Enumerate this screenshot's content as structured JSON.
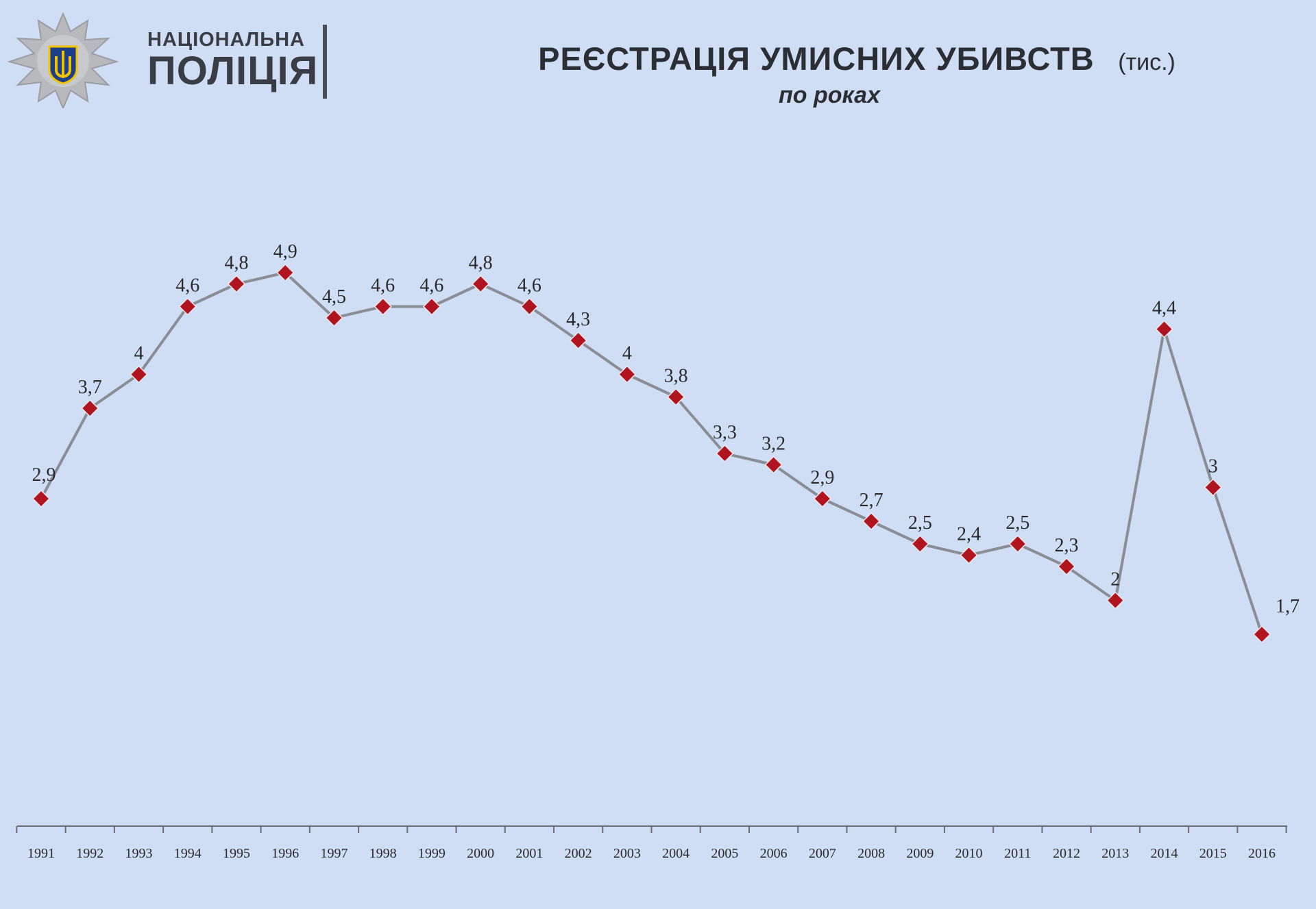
{
  "logo": {
    "line1": "НАЦІОНАЛЬНА",
    "line2": "ПОЛІЦІЯ",
    "emblem": "trident-star-icon"
  },
  "colors": {
    "background": "#cfddf5",
    "line": "#8a8d94",
    "marker": "#b0141f",
    "axis": "#6b6e75"
  },
  "chart_data": {
    "type": "line",
    "title": "РЕЄСТРАЦІЯ УМИСНИХ УБИВСТВ",
    "unit": "(тис.)",
    "subtitle": "по роках",
    "x": [
      "1991",
      "1992",
      "1993",
      "1994",
      "1995",
      "1996",
      "1997",
      "1998",
      "1999",
      "2000",
      "2001",
      "2002",
      "2003",
      "2004",
      "2005",
      "2006",
      "2007",
      "2008",
      "2009",
      "2010",
      "2011",
      "2012",
      "2013",
      "2014",
      "2015",
      "2016"
    ],
    "values": [
      2.9,
      3.7,
      4,
      4.6,
      4.8,
      4.9,
      4.5,
      4.6,
      4.6,
      4.8,
      4.6,
      4.3,
      4,
      3.8,
      3.3,
      3.2,
      2.9,
      2.7,
      2.5,
      2.4,
      2.5,
      2.3,
      2,
      4.4,
      3,
      1.7
    ],
    "labels": [
      "2,9",
      "3,7",
      "4",
      "4,6",
      "4,8",
      "4,9",
      "4,5",
      "4,6",
      "4,6",
      "4,8",
      "4,6",
      "4,3",
      "4",
      "3,8",
      "3,3",
      "3,2",
      "2,9",
      "2,7",
      "2,5",
      "2,4",
      "2,5",
      "2,3",
      "2",
      "4,4",
      "3",
      "1,7"
    ],
    "ylim": [
      0,
      6
    ],
    "grid": false,
    "legend": false,
    "marker": "diamond"
  }
}
